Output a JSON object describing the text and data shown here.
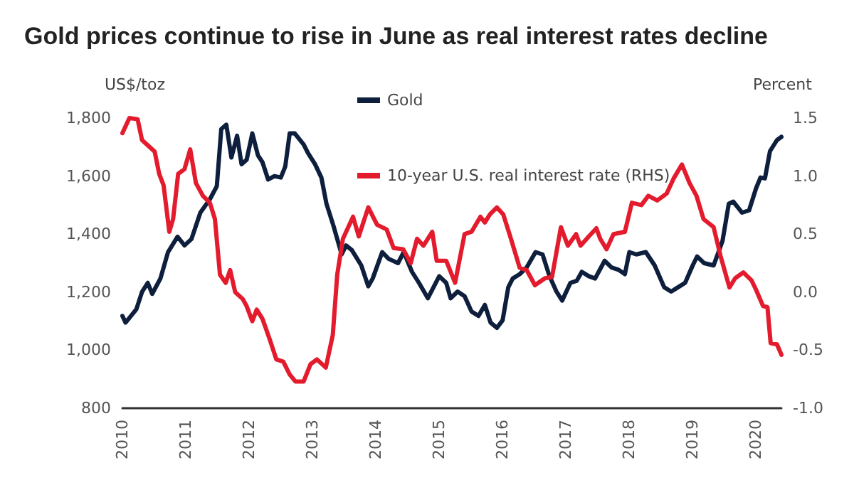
{
  "chart_data": {
    "type": "line",
    "title": "Gold prices continue to rise in June as real interest rates decline",
    "ylabel": "US$/toz",
    "y2label": "Percent",
    "xlim": [
      2010,
      2020.4
    ],
    "xticks": [
      2010,
      2011,
      2012,
      2013,
      2014,
      2015,
      2016,
      2017,
      2018,
      2019,
      2020
    ],
    "ylim": [
      800,
      1800
    ],
    "yticks": [
      800,
      {
        "value": 1000,
        "label": "1,000"
      },
      {
        "value": 1200,
        "label": "1,200"
      },
      {
        "value": 1400,
        "label": "1,400"
      },
      {
        "value": 1600,
        "label": "1,600"
      },
      {
        "value": 1800,
        "label": "1,800"
      }
    ],
    "y2lim": [
      -1.0,
      1.5
    ],
    "y2ticks": [
      {
        "value": -1.0,
        "label": "-1.0"
      },
      {
        "value": -0.5,
        "label": "-0.5"
      },
      {
        "value": 0,
        "label": "0.0"
      },
      {
        "value": 0.5,
        "label": "0.5"
      },
      {
        "value": 1.0,
        "label": "1.0"
      },
      {
        "value": 1.5,
        "label": "1.5"
      }
    ],
    "grid": false,
    "legend": "top",
    "marker": "none",
    "line_style": "solid",
    "series": [
      {
        "name": "Gold",
        "color": "#0d1f3c",
        "x": [
          2010.0,
          2010.05,
          2010.22,
          2010.31,
          2010.4,
          2010.47,
          2010.6,
          2010.72,
          2010.87,
          2010.98,
          2011.09,
          2011.23,
          2011.38,
          2011.49,
          2011.56,
          2011.64,
          2011.72,
          2011.81,
          2011.88,
          2011.96,
          2012.05,
          2012.14,
          2012.21,
          2012.3,
          2012.4,
          2012.5,
          2012.57,
          2012.64,
          2012.72,
          2012.86,
          2012.93,
          2013.04,
          2013.14,
          2013.22,
          2013.33,
          2013.46,
          2013.53,
          2013.62,
          2013.77,
          2013.88,
          2013.95,
          2014.1,
          2014.2,
          2014.35,
          2014.44,
          2014.57,
          2014.68,
          2014.82,
          2015.0,
          2015.11,
          2015.18,
          2015.29,
          2015.4,
          2015.51,
          2015.62,
          2015.72,
          2015.81,
          2015.91,
          2016.0,
          2016.09,
          2016.16,
          2016.27,
          2016.38,
          2016.52,
          2016.63,
          2016.74,
          2016.85,
          2016.94,
          2017.07,
          2017.17,
          2017.25,
          2017.36,
          2017.46,
          2017.61,
          2017.72,
          2017.83,
          2017.93,
          2018.0,
          2018.11,
          2018.26,
          2018.4,
          2018.55,
          2018.66,
          2018.77,
          2018.88,
          2019.0,
          2019.07,
          2019.18,
          2019.33,
          2019.47,
          2019.57,
          2019.64,
          2019.78,
          2019.89,
          2020.0,
          2020.07,
          2020.14,
          2020.22,
          2020.33,
          2020.4
        ],
        "values": [
          1118,
          1095,
          1141,
          1201,
          1232,
          1194,
          1247,
          1338,
          1391,
          1361,
          1383,
          1474,
          1520,
          1565,
          1762,
          1777,
          1664,
          1739,
          1641,
          1656,
          1747,
          1671,
          1648,
          1588,
          1600,
          1595,
          1633,
          1747,
          1747,
          1709,
          1679,
          1641,
          1595,
          1505,
          1429,
          1330,
          1361,
          1345,
          1292,
          1220,
          1247,
          1338,
          1315,
          1300,
          1338,
          1270,
          1232,
          1179,
          1255,
          1232,
          1179,
          1202,
          1186,
          1133,
          1118,
          1156,
          1095,
          1077,
          1103,
          1217,
          1247,
          1262,
          1285,
          1338,
          1330,
          1255,
          1202,
          1171,
          1232,
          1239,
          1270,
          1255,
          1247,
          1308,
          1285,
          1277,
          1262,
          1338,
          1330,
          1338,
          1292,
          1217,
          1202,
          1217,
          1232,
          1292,
          1323,
          1300,
          1292,
          1376,
          1505,
          1512,
          1474,
          1482,
          1558,
          1595,
          1592,
          1686,
          1724,
          1735
        ]
      },
      {
        "name": "10-year U.S. real interest rate (RHS)",
        "color": "#e31b2d",
        "axis": "y2",
        "x": [
          2010.0,
          2010.11,
          2010.24,
          2010.31,
          2010.43,
          2010.51,
          2010.58,
          2010.65,
          2010.74,
          2010.8,
          2010.88,
          2010.98,
          2011.07,
          2011.16,
          2011.27,
          2011.38,
          2011.46,
          2011.54,
          2011.63,
          2011.7,
          2011.78,
          2011.9,
          2011.96,
          2012.05,
          2012.12,
          2012.21,
          2012.32,
          2012.43,
          2012.54,
          2012.64,
          2012.73,
          2012.86,
          2012.97,
          2013.07,
          2013.21,
          2013.32,
          2013.39,
          2013.48,
          2013.64,
          2013.73,
          2013.88,
          2014.02,
          2014.17,
          2014.28,
          2014.43,
          2014.55,
          2014.65,
          2014.75,
          2014.89,
          2014.96,
          2015.11,
          2015.25,
          2015.4,
          2015.51,
          2015.65,
          2015.72,
          2015.8,
          2015.91,
          2016.01,
          2016.12,
          2016.27,
          2016.38,
          2016.51,
          2016.67,
          2016.78,
          2016.92,
          2017.03,
          2017.16,
          2017.23,
          2017.36,
          2017.48,
          2017.54,
          2017.64,
          2017.75,
          2017.93,
          2018.04,
          2018.19,
          2018.3,
          2018.44,
          2018.59,
          2018.7,
          2018.83,
          2018.95,
          2019.06,
          2019.17,
          2019.33,
          2019.44,
          2019.58,
          2019.67,
          2019.8,
          2019.93,
          2020.0,
          2020.11,
          2020.18,
          2020.23,
          2020.33,
          2020.4
        ],
        "values": [
          1.37,
          1.5,
          1.49,
          1.31,
          1.25,
          1.21,
          1.02,
          0.92,
          0.52,
          0.63,
          1.02,
          1.06,
          1.23,
          0.94,
          0.83,
          0.77,
          0.63,
          0.15,
          0.08,
          0.19,
          0.0,
          -0.06,
          -0.12,
          -0.25,
          -0.15,
          -0.23,
          -0.4,
          -0.58,
          -0.6,
          -0.71,
          -0.77,
          -0.77,
          -0.62,
          -0.58,
          -0.65,
          -0.37,
          0.15,
          0.46,
          0.65,
          0.48,
          0.73,
          0.58,
          0.54,
          0.38,
          0.37,
          0.25,
          0.46,
          0.4,
          0.52,
          0.27,
          0.27,
          0.08,
          0.5,
          0.52,
          0.65,
          0.6,
          0.67,
          0.73,
          0.67,
          0.48,
          0.21,
          0.19,
          0.06,
          0.12,
          0.13,
          0.56,
          0.4,
          0.5,
          0.4,
          0.48,
          0.55,
          0.46,
          0.37,
          0.5,
          0.52,
          0.77,
          0.75,
          0.83,
          0.79,
          0.85,
          0.98,
          1.1,
          0.94,
          0.83,
          0.63,
          0.56,
          0.31,
          0.04,
          0.12,
          0.17,
          0.1,
          0.02,
          -0.12,
          -0.13,
          -0.44,
          -0.45,
          -0.54
        ]
      }
    ]
  }
}
